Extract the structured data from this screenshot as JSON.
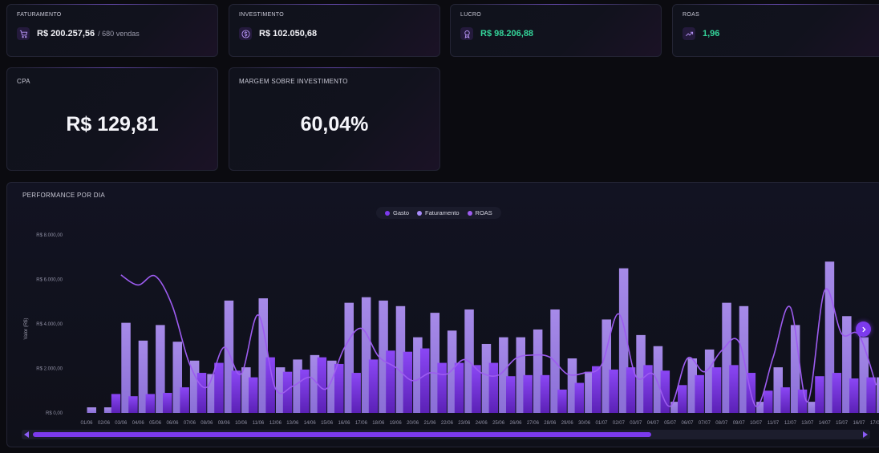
{
  "kpis": [
    {
      "title": "FATURAMENTO",
      "value": "R$ 200.257,56",
      "sub": "/ 680 vendas",
      "icon": "cart-icon",
      "positive": false
    },
    {
      "title": "INVESTIMENTO",
      "value": "R$ 102.050,68",
      "sub": "",
      "icon": "dollar-icon",
      "positive": false
    },
    {
      "title": "LUCRO",
      "value": "R$ 98.206,88",
      "sub": "",
      "icon": "award-icon",
      "positive": true
    },
    {
      "title": "ROAS",
      "value": "1,96",
      "sub": "",
      "icon": "trending-up-icon",
      "positive": true
    }
  ],
  "big_cards": [
    {
      "title": "CPA",
      "value": "R$ 129,81"
    },
    {
      "title": "MARGEM SOBRE INVESTIMENTO",
      "value": "60,04%"
    }
  ],
  "colors": {
    "accent": "#7c3aed",
    "gasto": "#7c3aed",
    "faturamento": "#a78bfa",
    "roas": "#9d5cf0",
    "positive": "#34d399"
  },
  "chart_title": "PERFORMANCE POR DIA",
  "chart_data": {
    "type": "bar",
    "title": "PERFORMANCE POR DIA",
    "ylabel": "Valor (R$)",
    "ylim": [
      0,
      8000
    ],
    "yticks": [
      0,
      2000,
      4000,
      6000,
      8000
    ],
    "ytick_labels": [
      "R$ 0,00",
      "R$ 2.000,00",
      "R$ 4.000,00",
      "R$ 6.000,00",
      "R$ 8.000,00"
    ],
    "grid": false,
    "legend_position": "top-center",
    "categories": [
      "01/06",
      "02/06",
      "03/06",
      "04/06",
      "05/06",
      "06/06",
      "07/06",
      "08/06",
      "09/06",
      "10/06",
      "11/06",
      "12/06",
      "13/06",
      "14/06",
      "15/06",
      "16/06",
      "17/06",
      "18/06",
      "19/06",
      "20/06",
      "21/06",
      "22/06",
      "23/06",
      "24/06",
      "25/06",
      "26/06",
      "27/06",
      "28/06",
      "29/06",
      "30/06",
      "01/07",
      "02/07",
      "03/07",
      "04/07",
      "05/07",
      "06/07",
      "07/07",
      "08/07",
      "09/07",
      "10/07",
      "11/07",
      "12/07",
      "13/07",
      "14/07",
      "15/07",
      "16/07",
      "17/07"
    ],
    "series": [
      {
        "name": "Gasto",
        "type": "bar",
        "values": [
          0,
          0,
          850,
          750,
          850,
          900,
          1150,
          1800,
          2250,
          1900,
          1600,
          2500,
          1850,
          1950,
          2500,
          2200,
          1800,
          2400,
          2800,
          2750,
          2900,
          2250,
          2250,
          2150,
          2250,
          1650,
          1700,
          1700,
          1050,
          1350,
          2100,
          1950,
          2050,
          2150,
          1900,
          1250,
          1700,
          2050,
          2150,
          1800,
          1000,
          1150,
          1050,
          1650,
          1800,
          1550,
          1600
        ]
      },
      {
        "name": "Faturamento",
        "type": "bar",
        "values": [
          250,
          250,
          4050,
          3250,
          3950,
          3200,
          2350,
          1750,
          5050,
          2050,
          5150,
          2050,
          2400,
          2600,
          2350,
          4950,
          5200,
          5050,
          4800,
          3400,
          4500,
          3700,
          4650,
          3100,
          3400,
          3400,
          3750,
          4650,
          2450,
          1850,
          4200,
          6500,
          3500,
          3000,
          500,
          2450,
          2850,
          4950,
          4800,
          500,
          2050,
          3950,
          500,
          6800,
          4350,
          3400,
          1600
        ]
      },
      {
        "name": "ROAS",
        "type": "line",
        "values": [
          null,
          null,
          6200,
          5750,
          6150,
          4800,
          2200,
          1150,
          2950,
          1750,
          4400,
          1100,
          1200,
          1600,
          1100,
          2900,
          3800,
          2550,
          2050,
          1450,
          1800,
          1750,
          2400,
          1800,
          1700,
          2450,
          2600,
          2500,
          1750,
          1800,
          2150,
          4450,
          1650,
          1750,
          300,
          2450,
          1850,
          2800,
          3200,
          300,
          2500,
          4750,
          500,
          5500,
          3550,
          3500,
          1250
        ]
      }
    ]
  },
  "scroll": {
    "prev_label": "‹",
    "next_label": "›"
  }
}
